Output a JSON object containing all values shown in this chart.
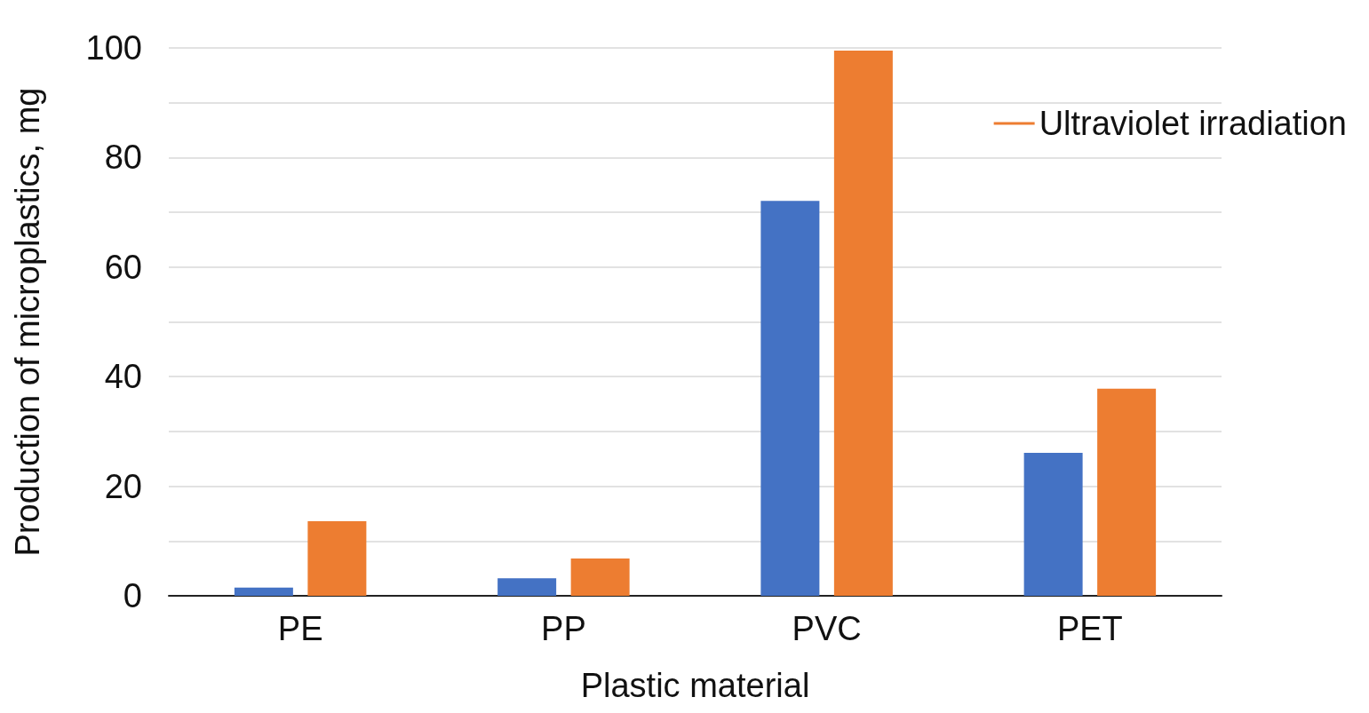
{
  "chart_data": {
    "type": "bar",
    "xlabel": "Plastic material",
    "ylabel": "Production of microplastics, mg",
    "categories": [
      "PE",
      "PP",
      "PVC",
      "PET"
    ],
    "series": [
      {
        "color": "#4472c4",
        "values": [
          1.5,
          3.2,
          72.1,
          26.1
        ]
      },
      {
        "name": "Ultraviolet irradiation",
        "color": "#ed7d31",
        "values": [
          13.6,
          6.8,
          99.5,
          37.8
        ]
      }
    ],
    "ylim": [
      0,
      100
    ],
    "yticks": [
      0,
      {
        "value": 10,
        "label": null
      },
      20,
      {
        "value": 30,
        "label": null
      },
      40,
      {
        "value": 50,
        "label": null
      },
      60,
      {
        "value": 70,
        "label": null
      },
      80,
      {
        "value": 90,
        "label": null
      },
      100
    ],
    "grid": "y",
    "legend": "top right"
  }
}
